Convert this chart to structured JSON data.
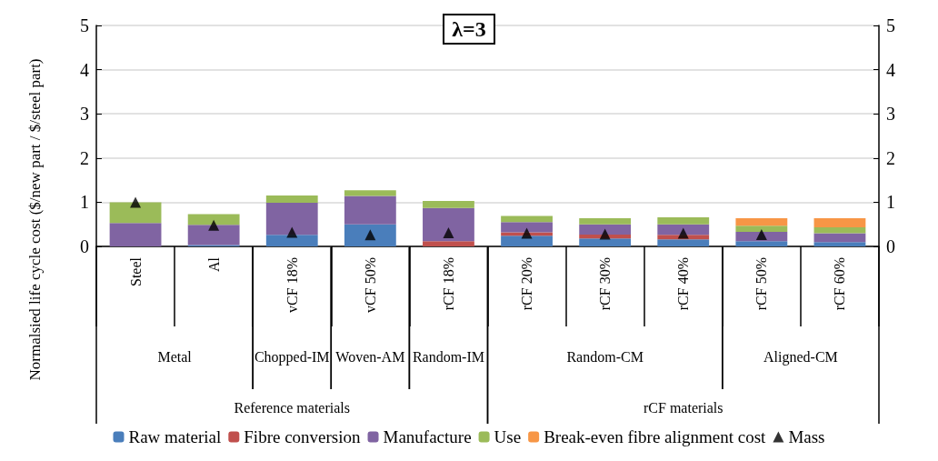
{
  "chart_data": {
    "type": "bar",
    "title": "λ=3",
    "ylabel": "Normalsied life cycle cost ($/new part / $/steel part)",
    "categories": [
      "Steel",
      "Al",
      "vCF 18%",
      "vCF 50%",
      "rCF 18%",
      "rCF 20%",
      "rCF 30%",
      "rCF 40%",
      "rCF 50%",
      "rCF 60%"
    ],
    "stacked": true,
    "ylim": [
      0,
      5
    ],
    "yticks": [
      0,
      1,
      2,
      3,
      4,
      5
    ],
    "y2lim": [
      0,
      5
    ],
    "y2ticks": [
      0,
      1,
      2,
      3,
      4,
      5
    ],
    "grid": "y",
    "legend": "bottom",
    "annotations": [
      "Metal",
      "Chopped-IM",
      "Woven-AM",
      "Random-IM",
      "Random-CM",
      "Aligned-CM",
      "Reference materials",
      "rCF materials"
    ],
    "series": [
      {
        "name": "Raw material",
        "color": "#4a7ebb",
        "values": [
          0,
          0.03,
          0.26,
          0.5,
          0,
          0.24,
          0.18,
          0.16,
          0.12,
          0.1
        ]
      },
      {
        "name": "Fibre conversion",
        "color": "#c0504d",
        "values": [
          0,
          0,
          0,
          0,
          0.12,
          0.08,
          0.09,
          0.1,
          0,
          0
        ]
      },
      {
        "name": "Manufacture",
        "color": "#8064a2",
        "values": [
          0.53,
          0.46,
          0.73,
          0.64,
          0.75,
          0.23,
          0.23,
          0.24,
          0.21,
          0.2
        ]
      },
      {
        "name": "Use",
        "color": "#9bbb59",
        "values": [
          0.47,
          0.24,
          0.16,
          0.13,
          0.16,
          0.14,
          0.14,
          0.16,
          0.14,
          0.13
        ]
      },
      {
        "name": "Break-even fibre alignment cost",
        "color": "#f79646",
        "values": [
          0,
          0,
          0,
          0,
          0,
          0,
          0,
          0,
          0.17,
          0.21
        ]
      },
      {
        "name": "Mass",
        "type": "scatter",
        "marker": "triangle",
        "color": "#000000",
        "values": [
          1,
          0.48,
          0.32,
          0.26,
          0.31,
          0.3,
          0.28,
          0.3,
          0.27,
          null
        ]
      }
    ]
  }
}
